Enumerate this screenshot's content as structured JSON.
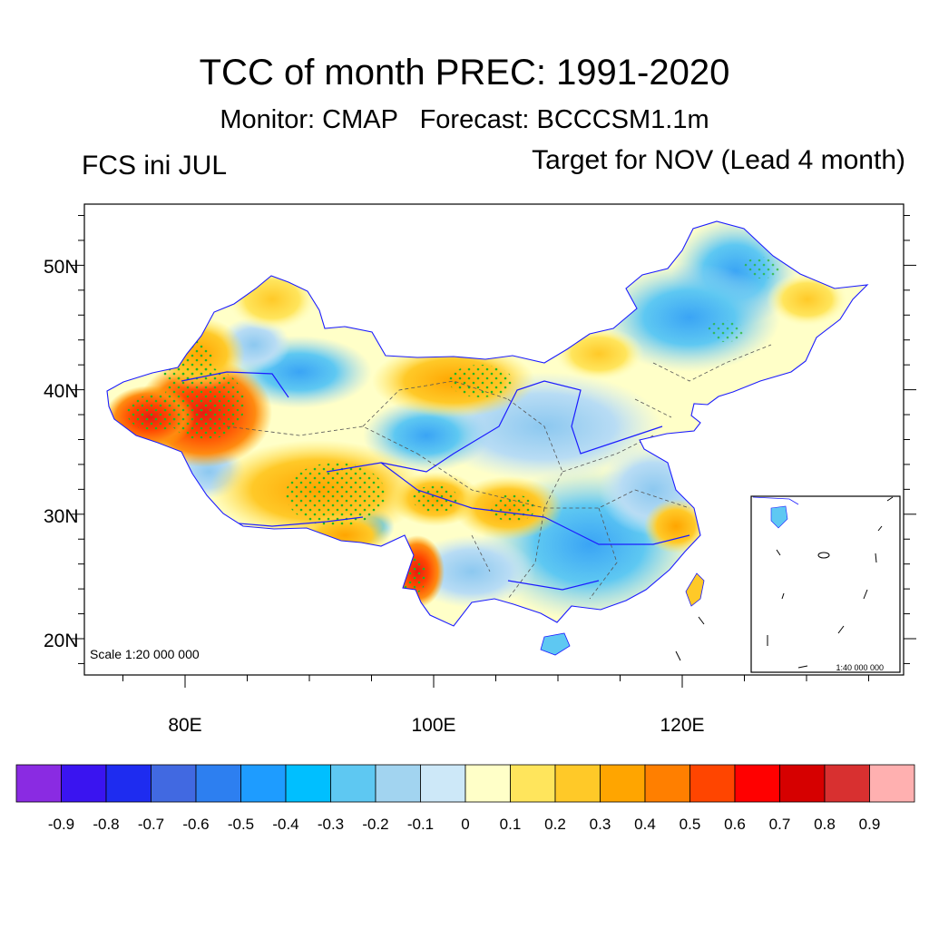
{
  "title": "TCC of month PREC: 1991-2020",
  "subtitle": "Monitor: CMAP   Forecast: BCCCSM1.1m",
  "left_string": "FCS ini JUL",
  "right_string": "Target for NOV (Lead 4 month)",
  "map": {
    "scale_text": "Scale 1:20 000 000",
    "inset_scale_text": "1:40 000 000",
    "lat_labels": [
      "20N",
      "30N",
      "40N",
      "50N"
    ],
    "lon_labels": [
      "80E",
      "100E",
      "120E"
    ],
    "lon_range": [
      72,
      138
    ],
    "lat_range": [
      17,
      55
    ],
    "stippling": "significant correlation (green dots)"
  },
  "colorbar": {
    "labels": [
      "-0.9",
      "-0.8",
      "-0.7",
      "-0.6",
      "-0.5",
      "-0.4",
      "-0.3",
      "-0.2",
      "-0.1",
      "0",
      "0.1",
      "0.2",
      "0.3",
      "0.4",
      "0.5",
      "0.6",
      "0.7",
      "0.8",
      "0.9"
    ],
    "colors": [
      "#8a2be2",
      "#3a14f0",
      "#1e2cf0",
      "#4169e1",
      "#2d7ff0",
      "#1e9cff",
      "#00bfff",
      "#5ec8f2",
      "#a2d4f0",
      "#cde8f8",
      "#ffffc8",
      "#ffe55c",
      "#ffc928",
      "#ffa500",
      "#ff7f00",
      "#ff4500",
      "#ff0000",
      "#d60000",
      "#d83030",
      "#ffb0b0"
    ]
  }
}
